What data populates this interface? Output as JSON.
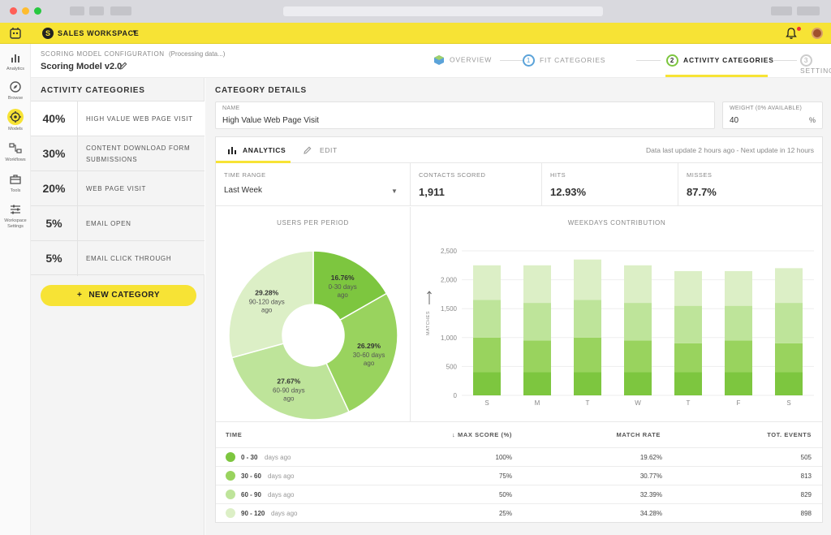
{
  "workspace": {
    "name": "SALES WORKSPACE"
  },
  "rail": [
    {
      "label": "Analytics",
      "icon": "bar-chart-icon"
    },
    {
      "label": "Browse",
      "icon": "compass-icon"
    },
    {
      "label": "Models",
      "icon": "target-icon"
    },
    {
      "label": "Workflows",
      "icon": "workflow-icon"
    },
    {
      "label": "Tools",
      "icon": "toolbox-icon"
    },
    {
      "label": "Workspace Settings",
      "icon": "sliders-icon"
    }
  ],
  "config": {
    "eyebrow": "SCORING MODEL CONFIGURATION",
    "status": "(Processing data...)",
    "model_name": "Scoring Model v2.0"
  },
  "steps": [
    {
      "num": "",
      "label": "OVERVIEW"
    },
    {
      "num": "1",
      "label": "FIT CATEGORIES"
    },
    {
      "num": "2",
      "label": "ACTIVITY CATEGORIES"
    },
    {
      "num": "3",
      "label": "SETTINGS"
    }
  ],
  "left": {
    "title": "ACTIVITY CATEGORIES",
    "categories": [
      {
        "pct": "40%",
        "name": "HIGH VALUE WEB PAGE VISIT"
      },
      {
        "pct": "30%",
        "name": "CONTENT DOWNLOAD FORM SUBMISSIONS"
      },
      {
        "pct": "20%",
        "name": "WEB PAGE VISIT"
      },
      {
        "pct": "5%",
        "name": "EMAIL OPEN"
      },
      {
        "pct": "5%",
        "name": "EMAIL CLICK THROUGH"
      }
    ],
    "new_button": "NEW CATEGORY",
    "new_button_icon": "+"
  },
  "details": {
    "title": "CATEGORY DETAILS",
    "name_label": "NAME",
    "name_value": "High Value Web Page Visit",
    "weight_label": "WEIGHT (0% AVAILABLE)",
    "weight_value": "40",
    "weight_unit": "%"
  },
  "tabs": {
    "analytics": "ANALYTICS",
    "edit": "EDIT",
    "update_note": "Data last update 2 hours ago - Next update in 12 hours"
  },
  "stats": {
    "time_range_label": "TIME RANGE",
    "time_range_value": "Last Week",
    "contacts_label": "CONTACTS SCORED",
    "contacts_value": "1,911",
    "hits_label": "HITS",
    "hits_value": "12.93%",
    "misses_label": "MISSES",
    "misses_value": "87.7%"
  },
  "colors": {
    "accent": "#f7e335",
    "green_1": "#7dc63f",
    "green_2": "#99d35e",
    "green_3": "#bee49a",
    "green_4": "#dcefc6"
  },
  "chart_data": [
    {
      "type": "pie",
      "title": "USERS PER PERIOD",
      "slices": [
        {
          "label": "16.76%",
          "sub": "0-30 days ago",
          "value": 16.76,
          "color": "#7dc63f"
        },
        {
          "label": "26.29%",
          "sub": "30-60 days ago",
          "value": 26.29,
          "color": "#99d35e"
        },
        {
          "label": "27.67%",
          "sub": "60-90 days ago",
          "value": 27.67,
          "color": "#bee49a"
        },
        {
          "label": "29.28%",
          "sub": "90-120 days ago",
          "value": 29.28,
          "color": "#dcefc6"
        }
      ]
    },
    {
      "type": "bar",
      "stacked": true,
      "title": "WEEKDAYS CONTRIBUTION",
      "ylabel": "MATCHES",
      "ylim": [
        0,
        2500
      ],
      "yticks": [
        "0",
        "500",
        "1,000",
        "1,500",
        "2,000",
        "2,500"
      ],
      "ytick_values": [
        0,
        500,
        1000,
        1500,
        2000,
        2500
      ],
      "grid": true,
      "categories": [
        "S",
        "M",
        "T",
        "W",
        "T",
        "F",
        "S"
      ],
      "series": [
        {
          "color": "#7dc63f",
          "values": [
            400,
            400,
            400,
            400,
            400,
            400,
            400
          ]
        },
        {
          "color": "#99d35e",
          "values": [
            600,
            550,
            600,
            550,
            500,
            550,
            500
          ]
        },
        {
          "color": "#bee49a",
          "values": [
            650,
            650,
            650,
            650,
            650,
            600,
            700
          ]
        },
        {
          "color": "#dcefc6",
          "values": [
            600,
            650,
            700,
            650,
            600,
            600,
            600
          ]
        }
      ]
    }
  ],
  "table": {
    "headers": {
      "time": "TIME",
      "max_score": "MAX SCORE (%)",
      "match_rate": "MATCH RATE",
      "tot_events": "TOT. EVENTS"
    },
    "rows": [
      {
        "range": "0 - 30",
        "suffix": "days ago",
        "max_score": "100%",
        "match_rate": "19.62%",
        "tot_events": "505",
        "color": "#7dc63f"
      },
      {
        "range": "30 - 60",
        "suffix": "days ago",
        "max_score": "75%",
        "match_rate": "30.77%",
        "tot_events": "813",
        "color": "#99d35e"
      },
      {
        "range": "60 - 90",
        "suffix": "days ago",
        "max_score": "50%",
        "match_rate": "32.39%",
        "tot_events": "829",
        "color": "#bee49a"
      },
      {
        "range": "90 - 120",
        "suffix": "days ago",
        "max_score": "25%",
        "match_rate": "34.28%",
        "tot_events": "898",
        "color": "#dcefc6"
      }
    ]
  }
}
